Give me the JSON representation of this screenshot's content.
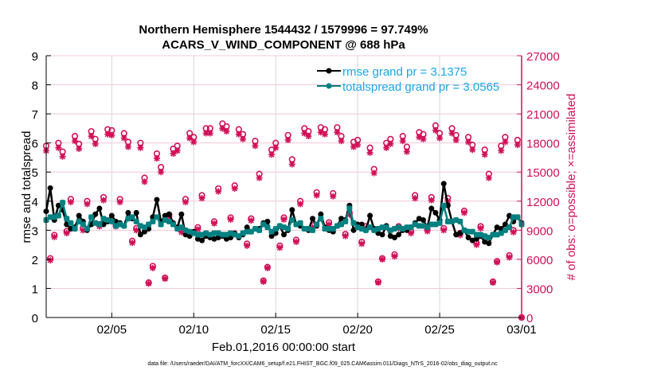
{
  "chart_data": {
    "type": "line",
    "title": [
      "Northern Hemisphere 1544432 / 1579996 = 97.749%",
      "ACARS_V_WIND_COMPONENT @ 688 hPa"
    ],
    "xlabel": "Feb.01,2016 00:00:00 start",
    "ylabel": "rmse and totalspread",
    "ylabel_right": "# of obs: o=possible; ×=assimilated",
    "footnote": "data file: /Users/raeder/DAI/ATM_forcXX/CAM6_setup/f.e21.FHIST_BGC.f09_025.CAM6assim.011/Diags_NTrS_2016-02/obs_diag_output.nc",
    "x_start": "2016-02-01 00:00",
    "time_step_hours": 6,
    "x_ticks": [
      "02/05",
      "02/10",
      "02/15",
      "02/20",
      "02/25",
      "03/01"
    ],
    "x_tick_days": [
      4,
      9,
      14,
      19,
      24,
      29
    ],
    "xlim_days": [
      0,
      29
    ],
    "ylim": [
      0,
      9
    ],
    "y_ticks": [
      "0",
      "1",
      "2",
      "3",
      "4",
      "5",
      "6",
      "7",
      "8",
      "9"
    ],
    "ylim_right": [
      0,
      27000
    ],
    "y_ticks_right": [
      "0",
      "3000",
      "6000",
      "9000",
      "12000",
      "15000",
      "18000",
      "21000",
      "24000",
      "27000"
    ],
    "grid": "vertical at x ticks, horizontal at right-axis ticks",
    "legend_position": "top-right",
    "series": [
      {
        "name": "rmse grand pr = 3.1375",
        "color": "#000000",
        "axis": "left",
        "values": [
          3.65,
          4.45,
          3.35,
          3.85,
          3.7,
          3.2,
          3.05,
          3.1,
          3.5,
          3.3,
          3.0,
          3.2,
          3.55,
          3.75,
          3.2,
          3.3,
          3.5,
          3.3,
          3.25,
          3.15,
          3.6,
          3.4,
          3.6,
          2.85,
          2.95,
          3.05,
          3.45,
          4.05,
          3.3,
          3.5,
          3.55,
          3.25,
          3.1,
          3.55,
          2.85,
          2.8,
          2.95,
          2.7,
          2.65,
          2.8,
          2.75,
          2.7,
          2.75,
          2.8,
          2.7,
          2.75,
          2.9,
          2.75,
          2.85,
          3.1,
          2.95,
          3.05,
          3.05,
          3.25,
          3.3,
          2.8,
          2.9,
          3.15,
          2.85,
          3.0,
          3.7,
          3.2,
          3.15,
          3.05,
          3.0,
          3.4,
          3.15,
          3.55,
          3.1,
          3.0,
          2.95,
          3.15,
          3.4,
          3.35,
          3.85,
          3.0,
          3.2,
          3.2,
          3.0,
          3.5,
          3.05,
          2.9,
          2.85,
          3.15,
          2.8,
          2.75,
          2.85,
          3.0,
          3.0,
          3.1,
          3.25,
          3.4,
          3.35,
          3.1,
          3.75,
          3.6,
          3.35,
          4.6,
          3.85,
          3.3,
          2.85,
          2.9,
          3.0,
          2.75,
          2.65,
          2.7,
          2.8,
          2.6,
          2.55,
          2.85,
          3.1,
          3.05,
          3.2,
          3.5,
          3.3,
          3.45,
          3.25
        ]
      },
      {
        "name": "totalspread grand pr = 3.0565",
        "color": "#008080",
        "axis": "left",
        "values": [
          3.35,
          3.45,
          3.45,
          3.5,
          3.95,
          3.4,
          3.25,
          3.05,
          3.3,
          3.2,
          3.05,
          3.45,
          3.25,
          3.2,
          3.4,
          3.35,
          3.3,
          3.15,
          3.2,
          3.15,
          3.4,
          3.45,
          3.3,
          3.15,
          3.1,
          3.2,
          3.3,
          3.45,
          3.2,
          3.35,
          3.3,
          3.2,
          3.05,
          3.1,
          3.0,
          2.95,
          2.9,
          2.85,
          2.85,
          2.9,
          2.85,
          2.9,
          2.9,
          2.85,
          2.85,
          2.9,
          2.85,
          2.8,
          2.9,
          2.95,
          2.95,
          3.05,
          3.0,
          3.2,
          3.1,
          2.95,
          3.05,
          3.15,
          3.1,
          3.05,
          3.35,
          3.2,
          3.25,
          3.05,
          3.05,
          3.0,
          3.2,
          3.4,
          3.05,
          3.05,
          3.05,
          3.15,
          3.2,
          3.3,
          3.75,
          3.25,
          3.1,
          3.05,
          3.0,
          3.1,
          3.0,
          3.05,
          3.1,
          3.1,
          3.0,
          3.05,
          3.1,
          3.05,
          3.1,
          3.1,
          3.2,
          3.15,
          3.15,
          3.1,
          3.2,
          3.2,
          3.25,
          3.85,
          3.3,
          3.3,
          3.35,
          3.3,
          3.0,
          2.95,
          2.95,
          2.85,
          2.85,
          2.8,
          2.75,
          2.85,
          2.85,
          2.9,
          3.0,
          3.1,
          3.45,
          3.45,
          3.2
        ]
      },
      {
        "name": "possible",
        "color": "#d01057",
        "axis": "right",
        "marker": "o",
        "values": [
          17700,
          6100,
          8500,
          18000,
          17100,
          8900,
          12200,
          18700,
          17900,
          9200,
          12000,
          19200,
          18400,
          9600,
          12400,
          19400,
          19300,
          9600,
          12200,
          19000,
          18100,
          7900,
          9200,
          18000,
          14400,
          3600,
          5300,
          16900,
          15500,
          4100,
          10600,
          17400,
          17700,
          9000,
          12200,
          19000,
          18600,
          9300,
          12600,
          19500,
          19500,
          9900,
          13300,
          20000,
          19700,
          10300,
          13600,
          19400,
          18900,
          7600,
          10200,
          18200,
          14800,
          3800,
          5200,
          17300,
          18000,
          7400,
          10300,
          18800,
          16300,
          8000,
          12000,
          19500,
          19200,
          9500,
          12900,
          19600,
          19400,
          9800,
          12800,
          19600,
          18700,
          8600,
          10800,
          18100,
          18300,
          7800,
          9400,
          17500,
          15300,
          3700,
          6100,
          18000,
          18400,
          6500,
          9400,
          18700,
          17600,
          8900,
          12600,
          19100,
          18900,
          9100,
          12400,
          19800,
          19000,
          9200,
          12300,
          19500,
          18800,
          8700,
          11000,
          18600,
          17800,
          7700,
          9400,
          17300,
          14800,
          3700,
          5800,
          17700,
          18600,
          6400,
          9000,
          18300,
          0
        ]
      },
      {
        "name": "assimilated",
        "color": "#d01057",
        "axis": "right",
        "marker": "*",
        "values": [
          17200,
          5900,
          8300,
          17500,
          16600,
          8700,
          11900,
          18200,
          17400,
          9000,
          11700,
          18700,
          17900,
          9400,
          12100,
          18900,
          18800,
          9400,
          11900,
          18500,
          17600,
          7700,
          9000,
          17500,
          14000,
          3500,
          5100,
          16400,
          15000,
          4000,
          10400,
          16900,
          17200,
          8800,
          11900,
          18500,
          18100,
          9100,
          12300,
          19000,
          19000,
          9700,
          13000,
          19500,
          19200,
          10100,
          13300,
          18900,
          18400,
          7400,
          10000,
          17700,
          14400,
          3700,
          5100,
          16800,
          17500,
          7200,
          10100,
          18300,
          15800,
          7800,
          11700,
          19000,
          18700,
          9300,
          12600,
          19100,
          18900,
          9600,
          12500,
          19100,
          18200,
          8400,
          10600,
          17600,
          17800,
          7600,
          9200,
          17000,
          14900,
          3600,
          6000,
          17500,
          17900,
          6300,
          9200,
          18200,
          17100,
          8700,
          12300,
          18600,
          18400,
          8900,
          12100,
          19300,
          18500,
          9000,
          12000,
          19000,
          18300,
          8500,
          10800,
          18100,
          17300,
          7500,
          9200,
          16800,
          14400,
          3600,
          5700,
          17200,
          18100,
          6200,
          8800,
          17800,
          0
        ]
      }
    ]
  }
}
